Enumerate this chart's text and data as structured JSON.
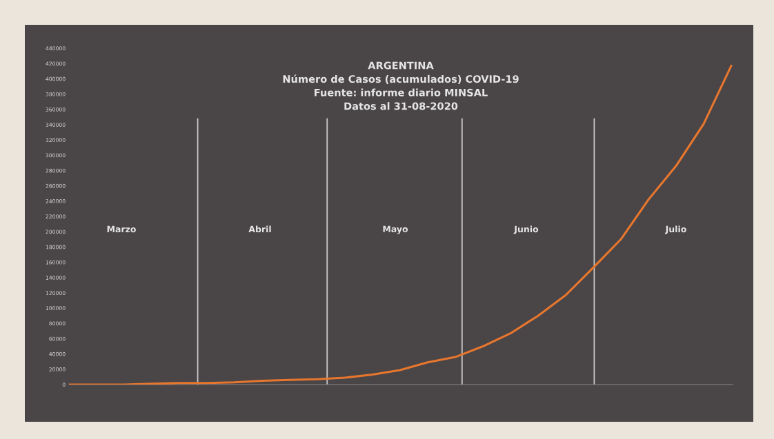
{
  "chart_data": {
    "type": "line",
    "title": "ARGENTINA\nNúmero de Casos (acumulados) COVID-19\nFuente: informe diario MINSAL\nDatos al 31-08-2020",
    "categories": [
      null,
      null,
      null,
      null,
      null,
      null,
      null,
      null,
      null,
      null,
      null,
      null,
      null,
      null,
      null,
      null,
      null,
      null,
      null,
      null,
      null,
      null,
      null,
      null,
      null
    ],
    "series": [
      {
        "color": "#e8772e",
        "values": [
          0,
          0,
          0,
          1000,
          2000,
          2000,
          3000,
          5000,
          6000,
          7000,
          9000,
          13000,
          19000,
          29000,
          36000,
          50000,
          67000,
          90000,
          117000,
          153000,
          190000,
          242000,
          286000,
          341000,
          417000
        ]
      }
    ],
    "ylim": [
      0,
      440000
    ],
    "yticks": [
      0,
      20000,
      40000,
      60000,
      80000,
      100000,
      120000,
      140000,
      160000,
      180000,
      200000,
      220000,
      240000,
      260000,
      280000,
      300000,
      320000,
      340000,
      360000,
      380000,
      400000,
      420000,
      440000
    ],
    "annotations": [
      "Marzo",
      "Abril",
      "Mayo",
      "Junio",
      "Julio"
    ],
    "grid": false
  }
}
